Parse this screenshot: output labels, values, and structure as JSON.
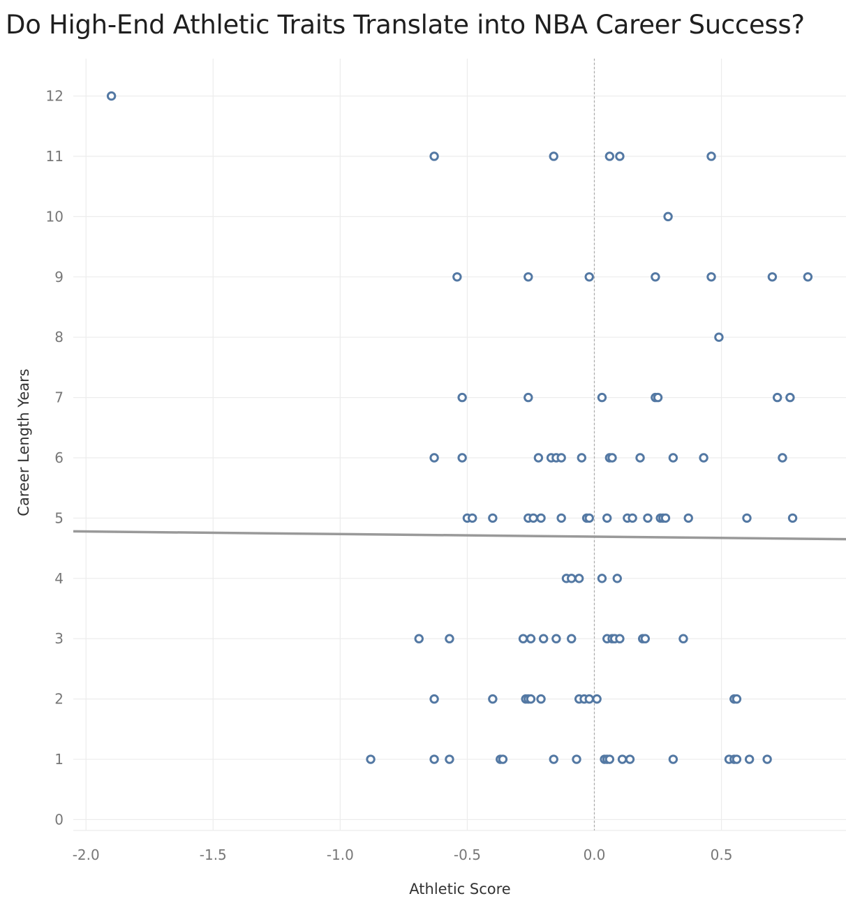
{
  "chart_data": {
    "type": "scatter",
    "title": "Do High-End Athletic Traits Translate into NBA Career Success?",
    "xlabel": "Athletic Score",
    "ylabel": "Career Length Years",
    "xlim": [
      -2.05,
      0.99
    ],
    "ylim": [
      -0.18,
      12.62
    ],
    "x_ticks": [
      -2.0,
      -1.5,
      -1.0,
      -0.5,
      0.0,
      0.5
    ],
    "x_tick_labels": [
      "-2.0",
      "-1.5",
      "-1.0",
      "-0.5",
      "0.0",
      "0.5"
    ],
    "y_ticks": [
      0,
      1,
      2,
      3,
      4,
      5,
      6,
      7,
      8,
      9,
      10,
      11,
      12
    ],
    "y_tick_labels": [
      "0",
      "1",
      "2",
      "3",
      "4",
      "5",
      "6",
      "7",
      "8",
      "9",
      "10",
      "11",
      "12"
    ],
    "grid": true,
    "legend": "none",
    "reference_line_x": 0.0,
    "trend_line": {
      "x": [
        -2.05,
        0.99
      ],
      "y": [
        4.78,
        4.65
      ]
    },
    "colors": {
      "points": "#5378a3",
      "trend": "#999999",
      "grid": "#ececec",
      "reference": "#aaaaaa"
    },
    "points": [
      {
        "x": -1.9,
        "y": 12
      },
      {
        "x": -0.63,
        "y": 11
      },
      {
        "x": -0.16,
        "y": 11
      },
      {
        "x": 0.06,
        "y": 11
      },
      {
        "x": 0.1,
        "y": 11
      },
      {
        "x": 0.46,
        "y": 11
      },
      {
        "x": 0.29,
        "y": 10
      },
      {
        "x": -0.54,
        "y": 9
      },
      {
        "x": -0.26,
        "y": 9
      },
      {
        "x": -0.02,
        "y": 9
      },
      {
        "x": 0.24,
        "y": 9
      },
      {
        "x": 0.46,
        "y": 9
      },
      {
        "x": 0.7,
        "y": 9
      },
      {
        "x": 0.84,
        "y": 9
      },
      {
        "x": 0.49,
        "y": 8
      },
      {
        "x": -0.52,
        "y": 7
      },
      {
        "x": -0.26,
        "y": 7
      },
      {
        "x": 0.03,
        "y": 7
      },
      {
        "x": 0.24,
        "y": 7
      },
      {
        "x": 0.25,
        "y": 7
      },
      {
        "x": 0.72,
        "y": 7
      },
      {
        "x": 0.77,
        "y": 7
      },
      {
        "x": -0.63,
        "y": 6
      },
      {
        "x": -0.52,
        "y": 6
      },
      {
        "x": -0.22,
        "y": 6
      },
      {
        "x": -0.17,
        "y": 6
      },
      {
        "x": -0.15,
        "y": 6
      },
      {
        "x": -0.13,
        "y": 6
      },
      {
        "x": -0.05,
        "y": 6
      },
      {
        "x": 0.06,
        "y": 6
      },
      {
        "x": 0.07,
        "y": 6
      },
      {
        "x": 0.18,
        "y": 6
      },
      {
        "x": 0.31,
        "y": 6
      },
      {
        "x": 0.43,
        "y": 6
      },
      {
        "x": 0.74,
        "y": 6
      },
      {
        "x": -0.5,
        "y": 5
      },
      {
        "x": -0.48,
        "y": 5
      },
      {
        "x": -0.4,
        "y": 5
      },
      {
        "x": -0.26,
        "y": 5
      },
      {
        "x": -0.24,
        "y": 5
      },
      {
        "x": -0.21,
        "y": 5
      },
      {
        "x": -0.13,
        "y": 5
      },
      {
        "x": -0.03,
        "y": 5
      },
      {
        "x": -0.02,
        "y": 5
      },
      {
        "x": 0.05,
        "y": 5
      },
      {
        "x": 0.13,
        "y": 5
      },
      {
        "x": 0.15,
        "y": 5
      },
      {
        "x": 0.21,
        "y": 5
      },
      {
        "x": 0.26,
        "y": 5
      },
      {
        "x": 0.27,
        "y": 5
      },
      {
        "x": 0.28,
        "y": 5
      },
      {
        "x": 0.37,
        "y": 5
      },
      {
        "x": 0.6,
        "y": 5
      },
      {
        "x": 0.78,
        "y": 5
      },
      {
        "x": -0.11,
        "y": 4
      },
      {
        "x": -0.09,
        "y": 4
      },
      {
        "x": -0.06,
        "y": 4
      },
      {
        "x": 0.03,
        "y": 4
      },
      {
        "x": 0.09,
        "y": 4
      },
      {
        "x": -0.69,
        "y": 3
      },
      {
        "x": -0.57,
        "y": 3
      },
      {
        "x": -0.28,
        "y": 3
      },
      {
        "x": -0.25,
        "y": 3
      },
      {
        "x": -0.2,
        "y": 3
      },
      {
        "x": -0.15,
        "y": 3
      },
      {
        "x": -0.09,
        "y": 3
      },
      {
        "x": 0.05,
        "y": 3
      },
      {
        "x": 0.07,
        "y": 3
      },
      {
        "x": 0.08,
        "y": 3
      },
      {
        "x": 0.1,
        "y": 3
      },
      {
        "x": 0.19,
        "y": 3
      },
      {
        "x": 0.2,
        "y": 3
      },
      {
        "x": 0.35,
        "y": 3
      },
      {
        "x": -0.63,
        "y": 2
      },
      {
        "x": -0.4,
        "y": 2
      },
      {
        "x": -0.27,
        "y": 2
      },
      {
        "x": -0.26,
        "y": 2
      },
      {
        "x": -0.25,
        "y": 2
      },
      {
        "x": -0.21,
        "y": 2
      },
      {
        "x": -0.06,
        "y": 2
      },
      {
        "x": -0.04,
        "y": 2
      },
      {
        "x": -0.02,
        "y": 2
      },
      {
        "x": 0.01,
        "y": 2
      },
      {
        "x": 0.55,
        "y": 2
      },
      {
        "x": 0.56,
        "y": 2
      },
      {
        "x": -0.88,
        "y": 1
      },
      {
        "x": -0.63,
        "y": 1
      },
      {
        "x": -0.57,
        "y": 1
      },
      {
        "x": -0.37,
        "y": 1
      },
      {
        "x": -0.36,
        "y": 1
      },
      {
        "x": -0.16,
        "y": 1
      },
      {
        "x": -0.07,
        "y": 1
      },
      {
        "x": 0.04,
        "y": 1
      },
      {
        "x": 0.05,
        "y": 1
      },
      {
        "x": 0.06,
        "y": 1
      },
      {
        "x": 0.11,
        "y": 1
      },
      {
        "x": 0.14,
        "y": 1
      },
      {
        "x": 0.31,
        "y": 1
      },
      {
        "x": 0.53,
        "y": 1
      },
      {
        "x": 0.55,
        "y": 1
      },
      {
        "x": 0.56,
        "y": 1
      },
      {
        "x": 0.61,
        "y": 1
      },
      {
        "x": 0.68,
        "y": 1
      }
    ]
  }
}
